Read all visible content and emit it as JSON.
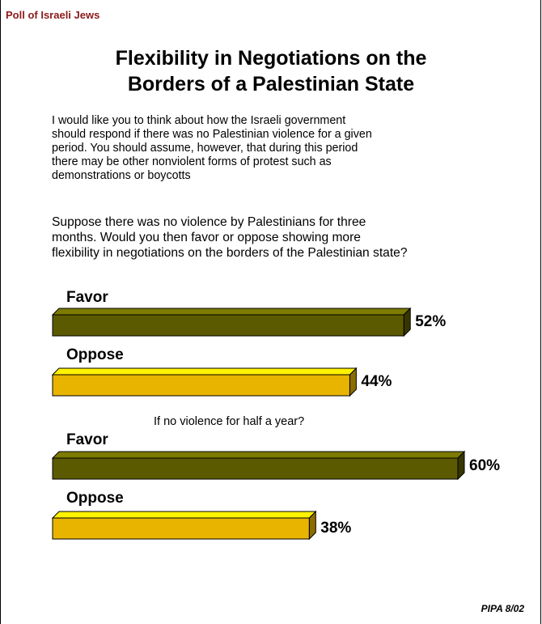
{
  "header": {
    "label": "Poll of Israeli Jews"
  },
  "title_lines": [
    "Flexibility in Negotiations on the",
    "Borders of a Palestinian State"
  ],
  "intro_lines": [
    "I would like you to think about how the Israeli government",
    "should respond if there was no Palestinian violence for a given",
    "period. You should assume, however, that during this period",
    "there may be other nonviolent forms of protest such as",
    "demonstrations or boycotts"
  ],
  "question_lines": [
    "Suppose there was no violence by Palestinians for three",
    "months. Would you then favor or oppose showing more",
    "flexibility in negotiations on the borders of the Palestinian state?"
  ],
  "subquestion": "If no violence for half a year?",
  "footer": "PIPA 8/02",
  "colors": {
    "favor": "#5c5a00",
    "oppose": "#e8b400"
  },
  "chart_data": {
    "type": "bar",
    "orientation": "horizontal",
    "xlim": [
      0,
      100
    ],
    "groups": [
      {
        "subtitle": "",
        "bars": [
          {
            "label": "Favor",
            "value": 52,
            "value_label": "52%",
            "color_key": "favor"
          },
          {
            "label": "Oppose",
            "value": 44,
            "value_label": "44%",
            "color_key": "oppose"
          }
        ]
      },
      {
        "subtitle": "If no violence for half a year?",
        "bars": [
          {
            "label": "Favor",
            "value": 60,
            "value_label": "60%",
            "color_key": "favor"
          },
          {
            "label": "Oppose",
            "value": 38,
            "value_label": "38%",
            "color_key": "oppose"
          }
        ]
      }
    ]
  }
}
